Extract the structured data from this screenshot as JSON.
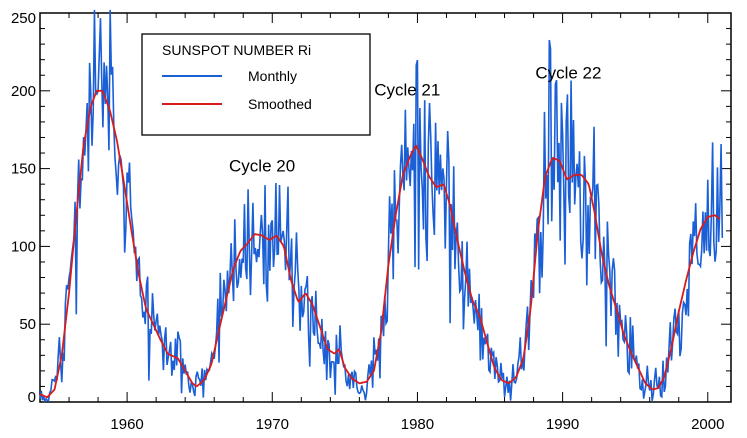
{
  "chart_data": {
    "type": "line",
    "title": "",
    "xlabel": "",
    "ylabel": "",
    "xlim": [
      1954,
      2001.6
    ],
    "ylim": [
      0,
      250
    ],
    "x_ticks": [
      1960,
      1970,
      1980,
      1990,
      2000
    ],
    "y_ticks": [
      0,
      50,
      100,
      150,
      200,
      250
    ],
    "legend": {
      "title": "SUNSPOT NUMBER Ri",
      "placement": "top-left",
      "entries": [
        {
          "label": "Monthly",
          "color": "#1a5fd6"
        },
        {
          "label": "Smoothed",
          "color": "#d81c1c"
        }
      ]
    },
    "annotations": [
      {
        "text": "Cycle 20",
        "x": 1969.3,
        "y": 148
      },
      {
        "text": "Cycle 21",
        "x": 1979.3,
        "y": 197
      },
      {
        "text": "Cycle 22",
        "x": 1990.4,
        "y": 208
      }
    ],
    "smoothed_anchors": [
      [
        1954.0,
        5
      ],
      [
        1954.5,
        3
      ],
      [
        1955.0,
        8
      ],
      [
        1955.5,
        30
      ],
      [
        1956.0,
        70
      ],
      [
        1956.5,
        120
      ],
      [
        1957.0,
        165
      ],
      [
        1957.5,
        190
      ],
      [
        1957.9,
        200
      ],
      [
        1958.3,
        200
      ],
      [
        1958.8,
        188
      ],
      [
        1959.3,
        168
      ],
      [
        1959.8,
        140
      ],
      [
        1960.3,
        110
      ],
      [
        1960.8,
        82
      ],
      [
        1961.3,
        60
      ],
      [
        1961.8,
        50
      ],
      [
        1962.3,
        40
      ],
      [
        1962.8,
        31
      ],
      [
        1963.5,
        28
      ],
      [
        1964.0,
        20
      ],
      [
        1964.5,
        12
      ],
      [
        1964.8,
        10
      ],
      [
        1965.3,
        14
      ],
      [
        1965.8,
        24
      ],
      [
        1966.3,
        45
      ],
      [
        1966.8,
        65
      ],
      [
        1967.3,
        85
      ],
      [
        1967.8,
        97
      ],
      [
        1968.3,
        102
      ],
      [
        1968.8,
        108
      ],
      [
        1969.3,
        107
      ],
      [
        1969.8,
        104
      ],
      [
        1970.3,
        107
      ],
      [
        1970.8,
        100
      ],
      [
        1971.3,
        78
      ],
      [
        1971.8,
        64
      ],
      [
        1972.3,
        70
      ],
      [
        1972.8,
        62
      ],
      [
        1973.3,
        48
      ],
      [
        1973.8,
        34
      ],
      [
        1974.3,
        31
      ],
      [
        1974.6,
        34
      ],
      [
        1975.0,
        22
      ],
      [
        1975.5,
        15
      ],
      [
        1976.0,
        12
      ],
      [
        1976.5,
        13
      ],
      [
        1977.0,
        20
      ],
      [
        1977.5,
        45
      ],
      [
        1978.0,
        88
      ],
      [
        1978.5,
        120
      ],
      [
        1979.0,
        146
      ],
      [
        1979.5,
        158
      ],
      [
        1979.9,
        165
      ],
      [
        1980.3,
        157
      ],
      [
        1980.8,
        145
      ],
      [
        1981.3,
        138
      ],
      [
        1981.8,
        140
      ],
      [
        1982.2,
        128
      ],
      [
        1982.8,
        102
      ],
      [
        1983.3,
        82
      ],
      [
        1983.8,
        65
      ],
      [
        1984.3,
        55
      ],
      [
        1984.8,
        38
      ],
      [
        1985.3,
        22
      ],
      [
        1985.8,
        14
      ],
      [
        1986.3,
        12
      ],
      [
        1986.8,
        16
      ],
      [
        1987.3,
        28
      ],
      [
        1987.8,
        60
      ],
      [
        1988.3,
        110
      ],
      [
        1988.8,
        145
      ],
      [
        1989.3,
        157
      ],
      [
        1989.8,
        155
      ],
      [
        1990.3,
        143
      ],
      [
        1990.8,
        146
      ],
      [
        1991.3,
        146
      ],
      [
        1991.8,
        140
      ],
      [
        1992.2,
        122
      ],
      [
        1992.7,
        95
      ],
      [
        1993.2,
        75
      ],
      [
        1993.7,
        60
      ],
      [
        1994.2,
        44
      ],
      [
        1994.7,
        32
      ],
      [
        1995.2,
        22
      ],
      [
        1995.7,
        12
      ],
      [
        1996.2,
        8
      ],
      [
        1996.6,
        9
      ],
      [
        1997.0,
        16
      ],
      [
        1997.5,
        35
      ],
      [
        1998.0,
        58
      ],
      [
        1998.5,
        78
      ],
      [
        1999.0,
        96
      ],
      [
        1999.5,
        111
      ],
      [
        2000.0,
        119
      ],
      [
        2000.5,
        120
      ],
      [
        2000.9,
        117
      ]
    ],
    "monthly_noise_seed": 11,
    "monthly_noise_scale": 0.18
  }
}
